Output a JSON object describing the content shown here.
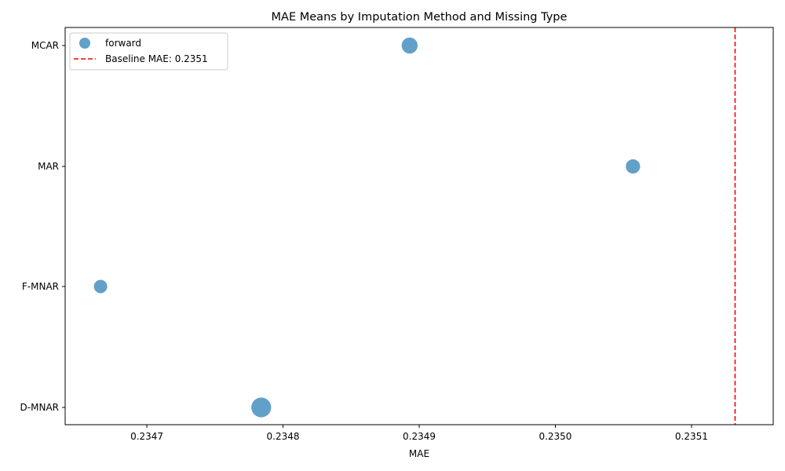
{
  "chart_data": {
    "type": "scatter",
    "title": "MAE Means by Imputation Method and Missing Type",
    "xlabel": "MAE",
    "ylabel": "",
    "xlim": [
      0.23464,
      0.23516
    ],
    "x_ticks": [
      "0.2347",
      "0.2348",
      "0.2349",
      "0.2350",
      "0.2351"
    ],
    "x_tick_values": [
      0.2347,
      0.2348,
      0.2349,
      0.235,
      0.2351
    ],
    "categories": [
      "MCAR",
      "MAR",
      "F-MNAR",
      "D-MNAR"
    ],
    "series": [
      {
        "name": "forward",
        "color": "#1f77b4",
        "points": [
          {
            "category": "MCAR",
            "x": 0.234893,
            "relative_size": 1.45
          },
          {
            "category": "MAR",
            "x": 0.235057,
            "relative_size": 1.15
          },
          {
            "category": "F-MNAR",
            "x": 0.234666,
            "relative_size": 1.0
          },
          {
            "category": "D-MNAR",
            "x": 0.234784,
            "relative_size": 2.2
          }
        ]
      }
    ],
    "baseline": {
      "label": "Baseline MAE: 0.2351",
      "x": 0.235132,
      "color": "#ff0000",
      "style": "dashed"
    },
    "legend_position": "top-left",
    "grid": false
  }
}
